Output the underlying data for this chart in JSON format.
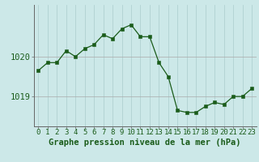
{
  "x": [
    0,
    1,
    2,
    3,
    4,
    5,
    6,
    7,
    8,
    9,
    10,
    11,
    12,
    13,
    14,
    15,
    16,
    17,
    18,
    19,
    20,
    21,
    22,
    23
  ],
  "y": [
    1019.65,
    1019.85,
    1019.85,
    1020.15,
    1020.0,
    1020.2,
    1020.3,
    1020.55,
    1020.45,
    1020.7,
    1020.8,
    1020.5,
    1020.5,
    1019.85,
    1019.5,
    1018.65,
    1018.6,
    1018.6,
    1018.75,
    1018.85,
    1018.8,
    1019.0,
    1019.0,
    1019.2
  ],
  "line_color": "#1a5c1a",
  "marker_color": "#1a5c1a",
  "bg_color": "#cce8e8",
  "vgrid_color": "#aacccc",
  "hgrid_color": "#aaaaaa",
  "xlabel": "Graphe pression niveau de la mer (hPa)",
  "xlabel_color": "#1a5c1a",
  "yticks": [
    1019,
    1020
  ],
  "ylim": [
    1018.25,
    1021.3
  ],
  "xlim": [
    -0.5,
    23.5
  ],
  "tick_color": "#1a5c1a",
  "spine_color": "#666666",
  "font_size_xlabel": 7.5,
  "font_size_ytick": 7.5,
  "font_size_xtick": 6.5
}
